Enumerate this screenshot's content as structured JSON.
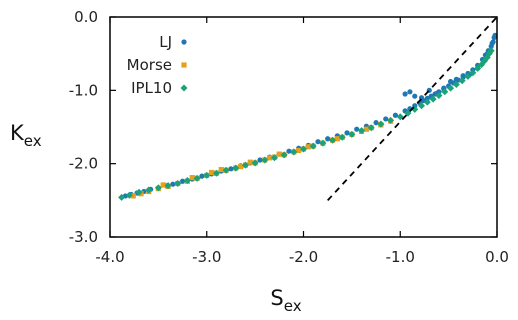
{
  "chart_data": {
    "type": "scatter",
    "xlabel": {
      "main": "S",
      "sub": "ex"
    },
    "ylabel": {
      "main": "K",
      "sub": "ex"
    },
    "xlim": [
      -4.0,
      0.0
    ],
    "ylim": [
      -3.0,
      0.0
    ],
    "xticks": [
      "-4.0",
      "-3.0",
      "-2.0",
      "-1.0",
      "0.0"
    ],
    "yticks": [
      "0.0",
      "-1.0",
      "-2.0",
      "-3.0"
    ],
    "grid": false,
    "legend_position": "top-left",
    "series": [
      {
        "name": "LJ",
        "color": "#1f77b4",
        "marker": "circle",
        "x": [
          -3.84,
          -3.78,
          -3.72,
          -3.65,
          -3.58,
          -3.5,
          -3.42,
          -3.35,
          -3.25,
          -3.15,
          -3.05,
          -2.95,
          -2.85,
          -2.75,
          -2.65,
          -2.55,
          -2.45,
          -2.35,
          -2.25,
          -2.15,
          -2.05,
          -1.95,
          -1.85,
          -1.75,
          -1.65,
          -1.55,
          -1.45,
          -1.35,
          -1.25,
          -1.15,
          -1.05,
          -0.95,
          -0.9,
          -0.85,
          -0.8,
          -0.76,
          -0.72,
          -0.68,
          -0.64,
          -0.6,
          -0.55,
          -0.5,
          -0.45,
          -0.4,
          -0.35,
          -0.3,
          -0.25,
          -0.2,
          -0.15,
          -0.12,
          -0.09,
          -0.06,
          -0.04,
          -0.03,
          -0.02,
          -0.95,
          -0.9,
          -0.85,
          -0.78,
          -0.7,
          -0.62,
          -0.55,
          -0.48,
          -0.42,
          -0.35,
          -0.28,
          -0.2,
          -0.1,
          -0.05
        ],
        "y": [
          -2.44,
          -2.42,
          -2.4,
          -2.38,
          -2.35,
          -2.33,
          -2.3,
          -2.28,
          -2.24,
          -2.21,
          -2.17,
          -2.14,
          -2.1,
          -2.07,
          -2.03,
          -1.99,
          -1.95,
          -1.91,
          -1.87,
          -1.83,
          -1.79,
          -1.75,
          -1.7,
          -1.66,
          -1.62,
          -1.58,
          -1.53,
          -1.49,
          -1.44,
          -1.39,
          -1.34,
          -1.28,
          -1.25,
          -1.21,
          -1.17,
          -1.14,
          -1.11,
          -1.08,
          -1.05,
          -1.02,
          -0.98,
          -0.94,
          -0.9,
          -0.86,
          -0.82,
          -0.77,
          -0.72,
          -0.66,
          -0.58,
          -0.52,
          -0.46,
          -0.4,
          -0.34,
          -0.28,
          -0.25,
          -1.05,
          -1.02,
          -1.08,
          -1.1,
          -1.0,
          -1.04,
          -0.97,
          -0.88,
          -0.85,
          -0.8,
          -0.78,
          -0.7,
          -0.5,
          -0.36
        ]
      },
      {
        "name": "Morse",
        "color": "#e6a020",
        "marker": "square",
        "x": [
          -3.76,
          -3.68,
          -3.6,
          -3.5,
          -3.4,
          -3.3,
          -3.2,
          -3.1,
          -3.0,
          -2.9,
          -2.8,
          -2.7,
          -2.6,
          -2.5,
          -2.4,
          -2.3,
          -2.2,
          -2.1,
          -2.0,
          -1.9,
          -1.8,
          -1.7,
          -1.6,
          -1.5,
          -1.4,
          -1.3,
          -1.2,
          -1.1,
          -3.45,
          -3.15,
          -2.85,
          -2.55,
          -2.25,
          -1.95,
          -1.65,
          -1.35,
          -1.2,
          -2.95,
          -2.65,
          -2.35,
          -2.05
        ],
        "y": [
          -2.44,
          -2.41,
          -2.38,
          -2.34,
          -2.31,
          -2.27,
          -2.24,
          -2.2,
          -2.16,
          -2.13,
          -2.09,
          -2.06,
          -2.02,
          -1.99,
          -1.95,
          -1.91,
          -1.88,
          -1.84,
          -1.8,
          -1.76,
          -1.72,
          -1.68,
          -1.64,
          -1.6,
          -1.56,
          -1.51,
          -1.47,
          -1.42,
          -2.29,
          -2.19,
          -2.08,
          -1.98,
          -1.87,
          -1.77,
          -1.66,
          -1.53,
          -1.47,
          -2.12,
          -2.04,
          -1.92,
          -1.82
        ]
      },
      {
        "name": "IPL10",
        "color": "#1aa37a",
        "marker": "diamond",
        "x": [
          -3.88,
          -3.8,
          -3.7,
          -3.6,
          -3.5,
          -3.4,
          -3.3,
          -3.2,
          -3.1,
          -3.0,
          -2.9,
          -2.8,
          -2.7,
          -2.6,
          -2.5,
          -2.4,
          -2.3,
          -2.2,
          -2.1,
          -2.0,
          -1.9,
          -1.8,
          -1.7,
          -1.6,
          -1.5,
          -1.4,
          -1.3,
          -1.2,
          -1.1,
          -1.0,
          -0.92,
          -0.85,
          -0.78,
          -0.72,
          -0.66,
          -0.6,
          -0.54,
          -0.48,
          -0.42,
          -0.36,
          -0.3,
          -0.25,
          -0.2,
          -0.16,
          -0.13,
          -0.1,
          -0.08,
          -0.06
        ],
        "y": [
          -2.46,
          -2.43,
          -2.39,
          -2.36,
          -2.33,
          -2.3,
          -2.27,
          -2.23,
          -2.2,
          -2.16,
          -2.13,
          -2.09,
          -2.06,
          -2.02,
          -1.99,
          -1.95,
          -1.92,
          -1.88,
          -1.84,
          -1.8,
          -1.76,
          -1.72,
          -1.68,
          -1.64,
          -1.6,
          -1.55,
          -1.51,
          -1.46,
          -1.41,
          -1.36,
          -1.31,
          -1.26,
          -1.21,
          -1.16,
          -1.12,
          -1.07,
          -1.02,
          -0.97,
          -0.92,
          -0.87,
          -0.81,
          -0.76,
          -0.7,
          -0.65,
          -0.6,
          -0.55,
          -0.5,
          -0.46
        ]
      }
    ],
    "reference_line": {
      "style": "dashed",
      "color": "#000000",
      "x": [
        -1.75,
        0.0
      ],
      "y": [
        -2.5,
        0.0
      ]
    }
  }
}
